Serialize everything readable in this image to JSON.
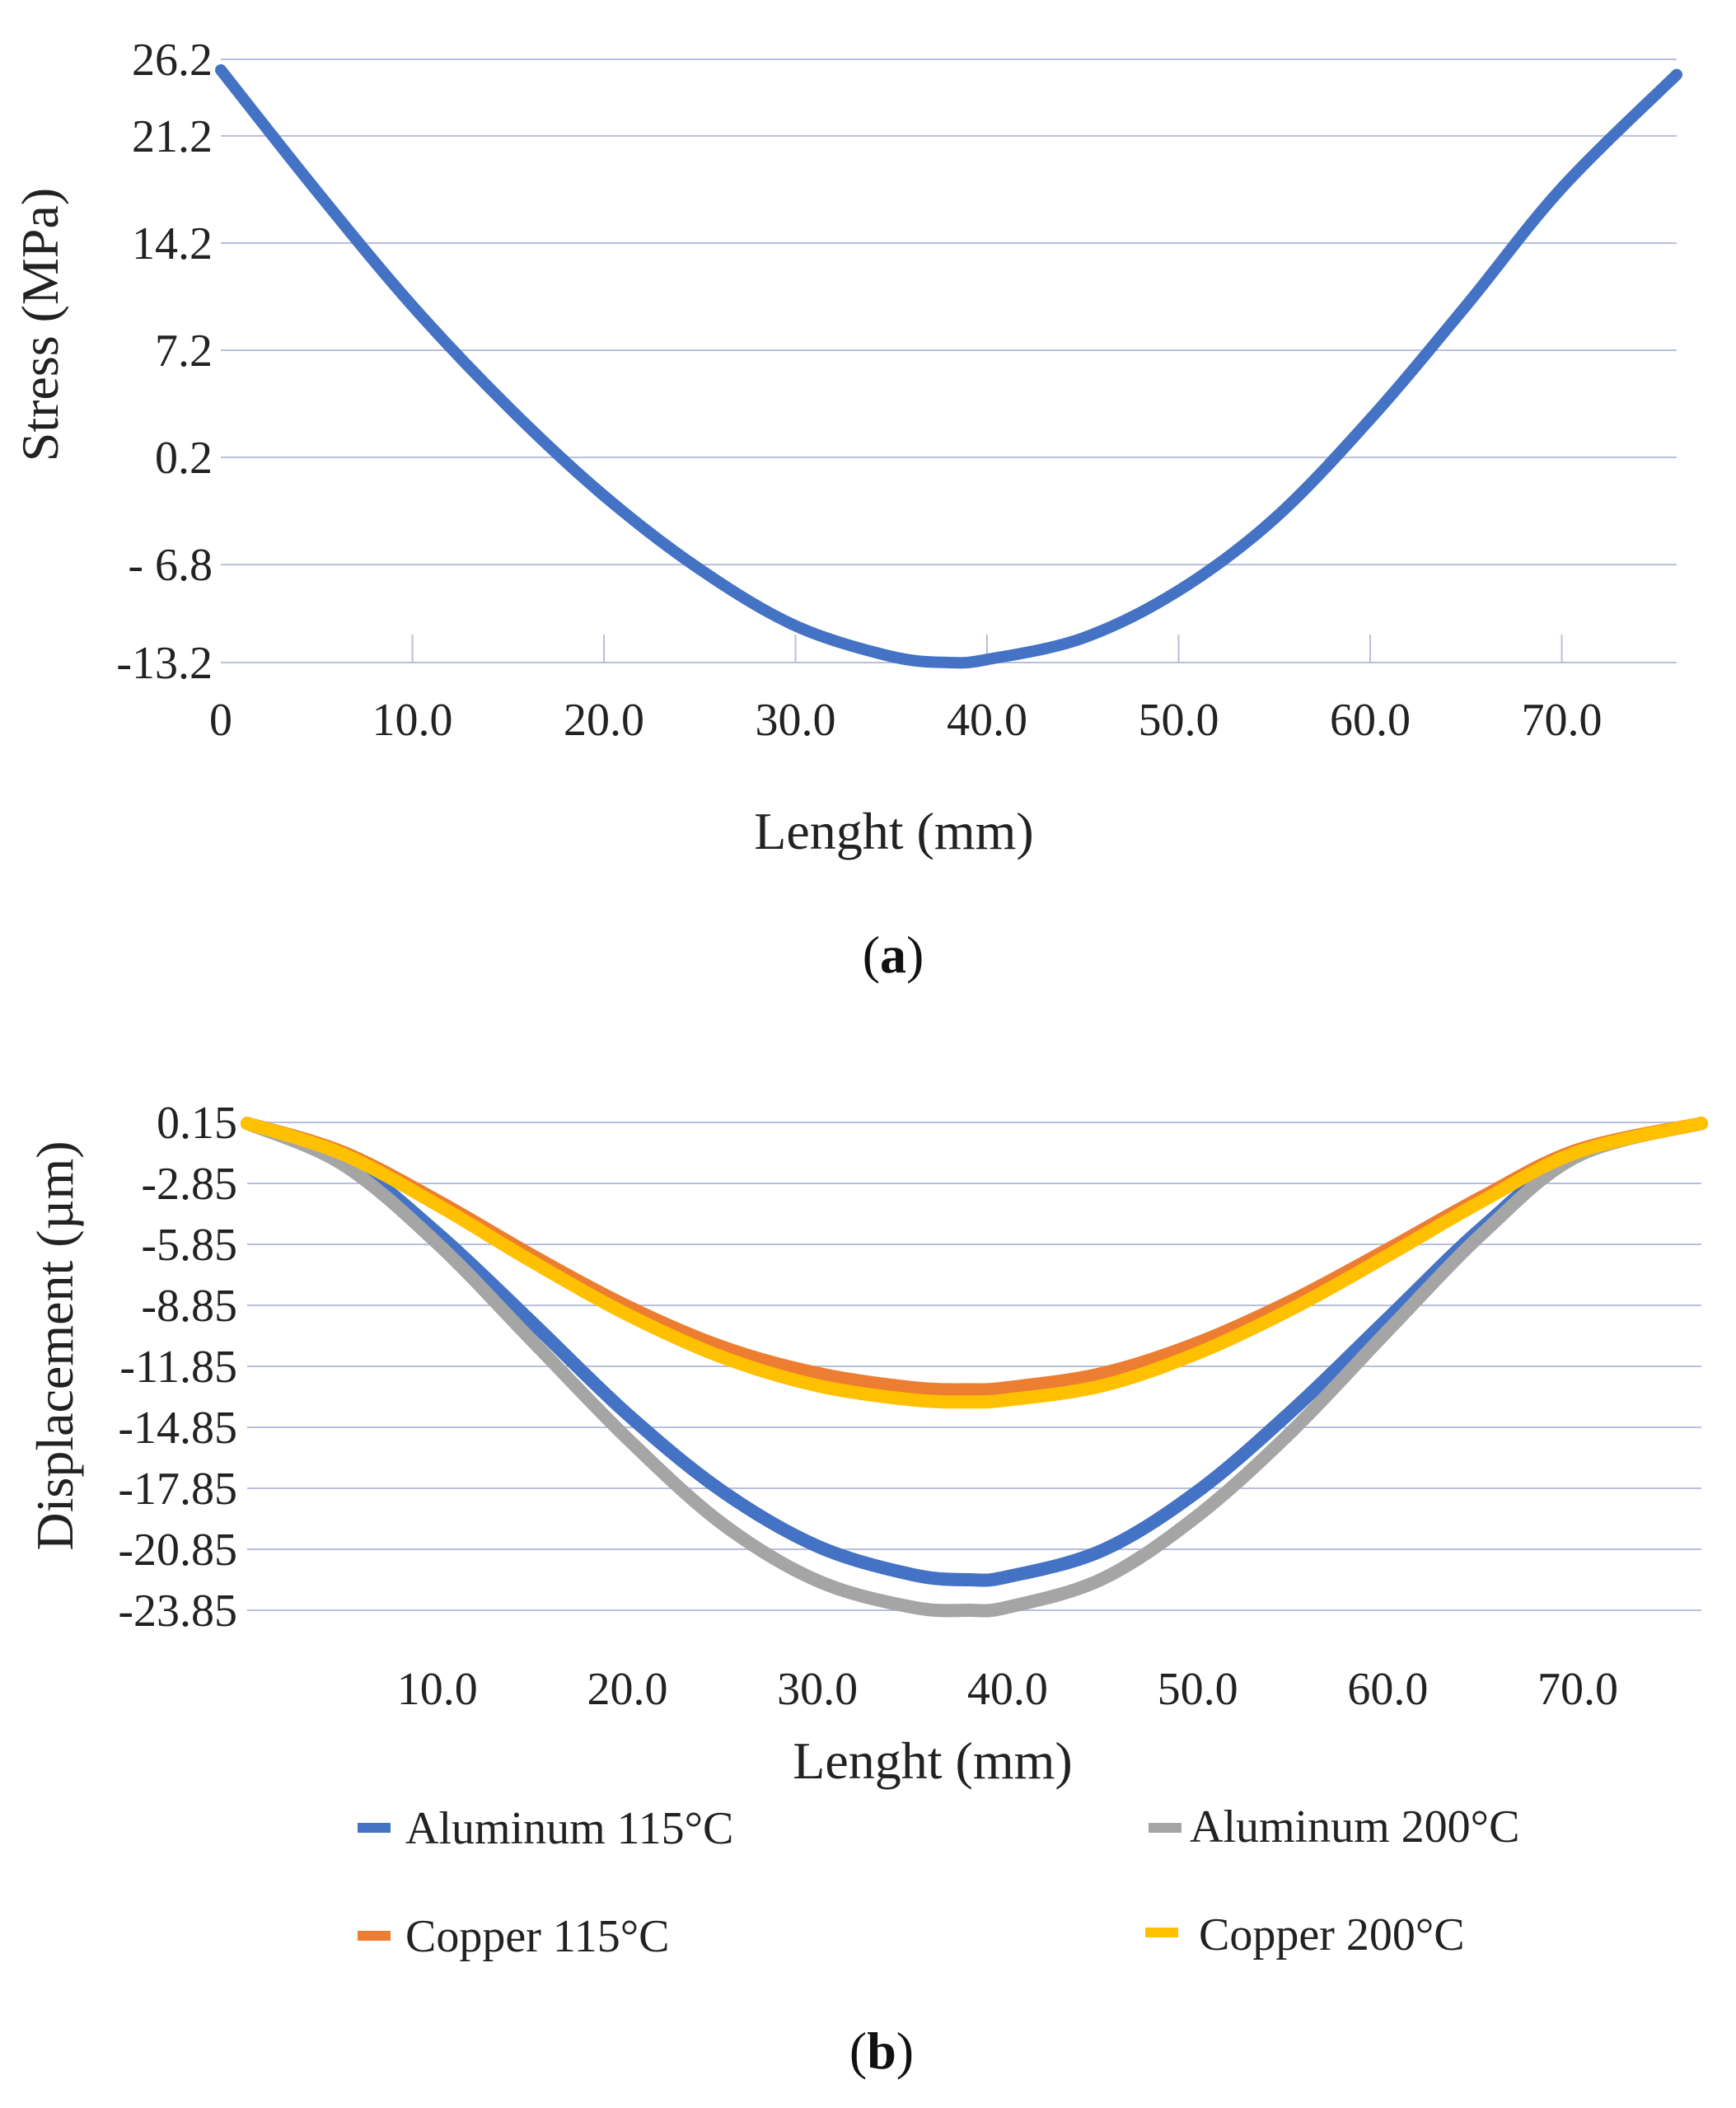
{
  "chart_data": [
    {
      "id": "a",
      "type": "line",
      "caption": {
        "open": "(",
        "letter": "a",
        "close": ")"
      },
      "xlabel": "Lenght (mm)",
      "ylabel": "Stress (MPa)",
      "xlim": [
        0,
        76
      ],
      "ylim": [
        -13.2,
        26.2
      ],
      "ytick_values": [
        26.2,
        21.2,
        14.2,
        7.2,
        0.2,
        -6.8,
        -13.2
      ],
      "ytick_labels": [
        "26.2",
        "21.2",
        "14.2",
        "7.2",
        "0.2",
        "- 6.8",
        "-13.2"
      ],
      "xtick_values": [
        0,
        10,
        20,
        30,
        40,
        50,
        60,
        70
      ],
      "xtick_labels": [
        "0",
        "10.0",
        "20.0",
        "30.0",
        "40.0",
        "50.0",
        "60.0",
        "70.0"
      ],
      "grid": true,
      "series": [
        {
          "name": "Stress",
          "color": "#4472c4",
          "x": [
            0,
            5,
            10,
            15,
            20,
            25,
            30,
            35,
            38,
            40,
            45,
            50,
            55,
            60,
            65,
            70,
            76
          ],
          "y": [
            25.5,
            17.6,
            10.1,
            3.5,
            -2.3,
            -7.1,
            -10.8,
            -12.8,
            -13.2,
            -13.0,
            -11.6,
            -8.5,
            -3.8,
            2.7,
            10.1,
            17.8,
            25.2
          ]
        }
      ]
    },
    {
      "id": "b",
      "type": "line",
      "caption": {
        "open": "(",
        "letter": "b",
        "close": ")"
      },
      "xlabel": "Lenght (mm)",
      "ylabel": "Displacement (µm)",
      "xlim": [
        0,
        76.5
      ],
      "ylim": [
        -23.85,
        0.15
      ],
      "ytick_values": [
        0.15,
        -2.85,
        -5.85,
        -8.85,
        -11.85,
        -14.85,
        -17.85,
        -20.85,
        -23.85
      ],
      "ytick_labels": [
        "0.15",
        "-2.85",
        "-5.85",
        "-8.85",
        "-11.85",
        "-14.85",
        "-17.85",
        "-20.85",
        "-23.85"
      ],
      "xtick_values": [
        10,
        20,
        30,
        40,
        50,
        60,
        70
      ],
      "xtick_labels": [
        "10.0",
        "20.0",
        "30.0",
        "40.0",
        "50.0",
        "60.0",
        "70.0"
      ],
      "grid": true,
      "legend_position": "bottom",
      "series": [
        {
          "name": "Aluminum 115°C",
          "color": "#4472c4",
          "x": [
            0,
            5,
            10,
            15,
            20,
            25,
            30,
            35,
            38,
            40,
            45,
            50,
            55,
            60,
            65,
            70,
            76.5
          ],
          "y": [
            0.1,
            -1.6,
            -5.3,
            -9.7,
            -14.2,
            -18.0,
            -20.7,
            -22.1,
            -22.35,
            -22.2,
            -20.9,
            -18.0,
            -14.0,
            -9.5,
            -5.0,
            -1.4,
            0.1
          ]
        },
        {
          "name": "Aluminum 200°C",
          "color": "#a5a5a5",
          "x": [
            0,
            5,
            10,
            15,
            20,
            25,
            30,
            35,
            38,
            40,
            45,
            50,
            55,
            60,
            65,
            70,
            76.5
          ],
          "y": [
            0.1,
            -1.9,
            -5.8,
            -10.6,
            -15.4,
            -19.6,
            -22.4,
            -23.7,
            -23.85,
            -23.7,
            -22.3,
            -19.2,
            -15.0,
            -10.1,
            -5.3,
            -1.5,
            0.1
          ]
        },
        {
          "name": "Copper 115°C",
          "color": "#ed7d31",
          "x": [
            0,
            5,
            10,
            15,
            20,
            25,
            30,
            35,
            38,
            40,
            45,
            50,
            55,
            60,
            65,
            70,
            76.5
          ],
          "y": [
            0.1,
            -1.3,
            -3.7,
            -6.4,
            -8.9,
            -10.9,
            -12.2,
            -12.9,
            -13.0,
            -12.9,
            -12.2,
            -10.7,
            -8.6,
            -6.1,
            -3.5,
            -1.2,
            0.1
          ]
        },
        {
          "name": "Copper 200°C",
          "color": "#ffc000",
          "x": [
            0,
            5,
            10,
            15,
            20,
            25,
            30,
            35,
            38,
            40,
            45,
            50,
            55,
            60,
            65,
            70,
            76.5
          ],
          "y": [
            0.1,
            -1.4,
            -3.9,
            -6.7,
            -9.3,
            -11.4,
            -12.8,
            -13.5,
            -13.6,
            -13.5,
            -12.8,
            -11.2,
            -9.0,
            -6.4,
            -3.7,
            -1.3,
            0.1
          ]
        }
      ]
    }
  ]
}
